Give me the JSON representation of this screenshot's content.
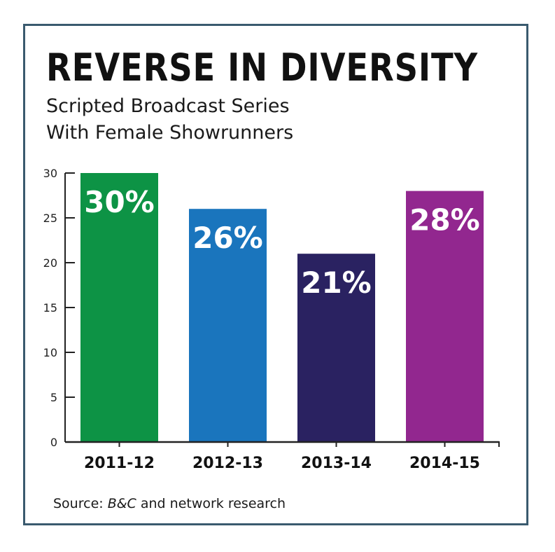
{
  "title": "REVERSE IN DIVERSITY",
  "subtitle_line1": "Scripted Broadcast Series",
  "subtitle_line2": "With Female Showrunners",
  "source": {
    "prefix": "Source: ",
    "italic": "B&C",
    "suffix": " and network research"
  },
  "chart_data": {
    "type": "bar",
    "title": "REVERSE IN DIVERSITY",
    "subtitle": "Scripted Broadcast Series With Female Showrunners",
    "categories": [
      "2011-12",
      "2012-13",
      "2013-14",
      "2014-15"
    ],
    "values": [
      30,
      26,
      21,
      28
    ],
    "data_labels": [
      "30%",
      "26%",
      "21%",
      "28%"
    ],
    "colors": [
      "#0d9345",
      "#1a75bd",
      "#2a2261",
      "#92278f"
    ],
    "yticks": [
      "0",
      "5",
      "10",
      "15",
      "20",
      "25",
      "30"
    ],
    "ylim": [
      0,
      30
    ],
    "xlabel": "",
    "ylabel": "",
    "grid": false,
    "legend": "none"
  }
}
